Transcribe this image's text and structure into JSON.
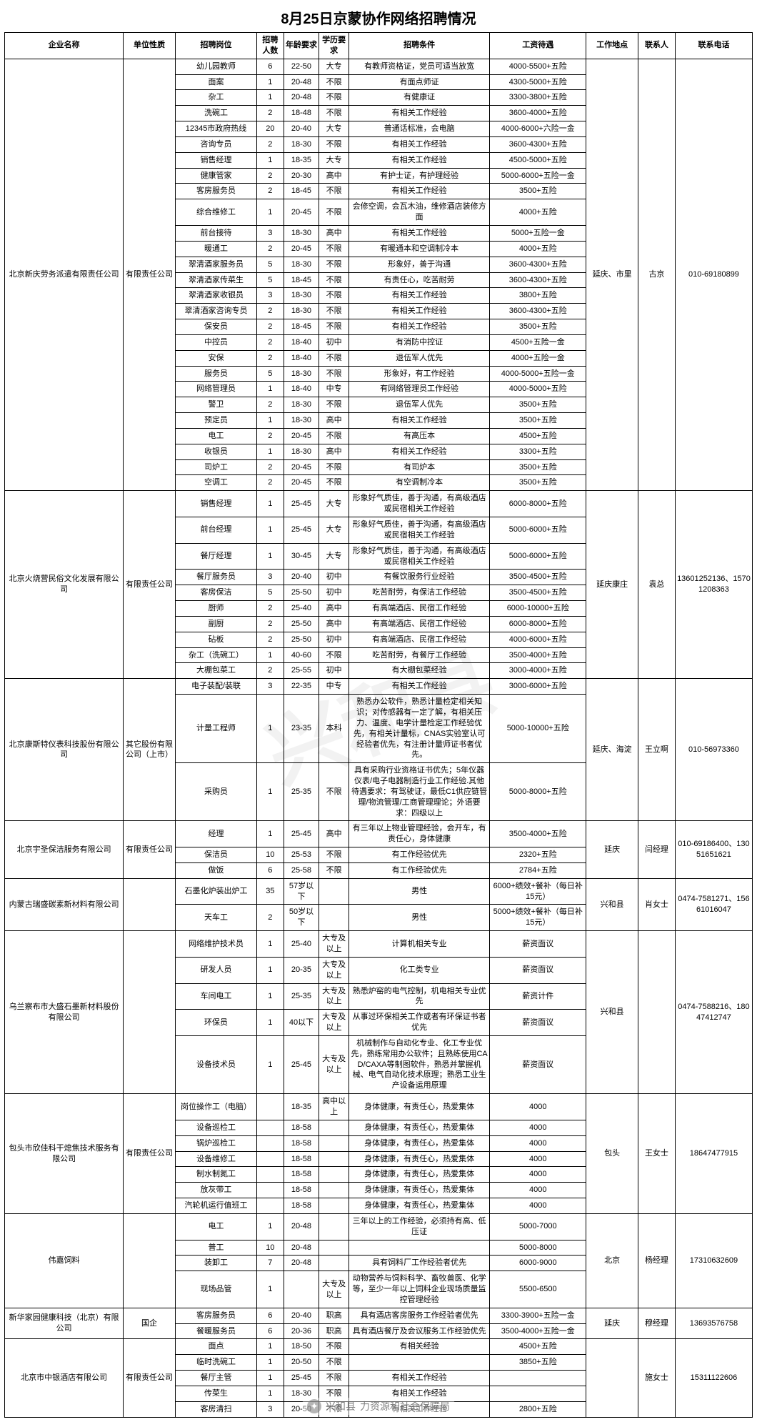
{
  "title": "8月25日京蒙协作网络招聘情况",
  "headers": {
    "company": "企业名称",
    "type": "单位性质",
    "position": "招聘岗位",
    "count": "招聘人数",
    "age": "年龄要求",
    "edu": "学历要求",
    "cond": "招聘条件",
    "salary": "工资待遇",
    "loc": "工作地点",
    "contact": "联系人",
    "phone": "联系电话"
  },
  "watermark_text": "兴和县",
  "footer": {
    "handle_prefix": "兴和县",
    "handle_suffix": "力资源和社会保障局"
  },
  "companies": [
    {
      "name": "北京新庆劳务派遣有限责任公司",
      "type": "有限责任公司",
      "loc": "延庆、市里",
      "contact": "古京",
      "phone": "010-69180899",
      "rows": [
        {
          "position": "幼儿园教师",
          "count": "6",
          "age": "22-50",
          "edu": "大专",
          "cond": "有教师资格证，党员可适当放宽",
          "salary": "4000-5500+五险"
        },
        {
          "position": "面案",
          "count": "1",
          "age": "20-48",
          "edu": "不限",
          "cond": "有面点师证",
          "salary": "4300-5000+五险"
        },
        {
          "position": "杂工",
          "count": "1",
          "age": "20-48",
          "edu": "不限",
          "cond": "有健康证",
          "salary": "3300-3800+五险"
        },
        {
          "position": "洗碗工",
          "count": "2",
          "age": "18-48",
          "edu": "不限",
          "cond": "有相关工作经验",
          "salary": "3600-4000+五险"
        },
        {
          "position": "12345市政府热线",
          "count": "20",
          "age": "20-40",
          "edu": "大专",
          "cond": "普通话标准，会电脑",
          "salary": "4000-6000+六险一金"
        },
        {
          "position": "咨询专员",
          "count": "2",
          "age": "18-30",
          "edu": "不限",
          "cond": "有相关工作经验",
          "salary": "3600-4300+五险"
        },
        {
          "position": "销售经理",
          "count": "1",
          "age": "18-35",
          "edu": "大专",
          "cond": "有相关工作经验",
          "salary": "4500-5000+五险"
        },
        {
          "position": "健康管家",
          "count": "2",
          "age": "20-30",
          "edu": "高中",
          "cond": "有护士证，有护理经验",
          "salary": "5000-6000+五险一金"
        },
        {
          "position": "客房服务员",
          "count": "2",
          "age": "18-45",
          "edu": "不限",
          "cond": "有相关工作经验",
          "salary": "3500+五险"
        },
        {
          "position": "综合维修工",
          "count": "1",
          "age": "20-45",
          "edu": "不限",
          "cond": "会修空调，会瓦木油，维修酒店装修方面",
          "salary": "4000+五险"
        },
        {
          "position": "前台接待",
          "count": "3",
          "age": "18-30",
          "edu": "高中",
          "cond": "有相关工作经验",
          "salary": "5000+五险一金"
        },
        {
          "position": "暖通工",
          "count": "2",
          "age": "20-45",
          "edu": "不限",
          "cond": "有暖通本和空调制冷本",
          "salary": "4000+五险"
        },
        {
          "position": "翠清酒家服务员",
          "count": "5",
          "age": "18-30",
          "edu": "不限",
          "cond": "形象好，善于沟通",
          "salary": "3600-4300+五险"
        },
        {
          "position": "翠清酒家传菜生",
          "count": "5",
          "age": "18-45",
          "edu": "不限",
          "cond": "有责任心，吃苦耐劳",
          "salary": "3600-4300+五险"
        },
        {
          "position": "翠清酒家收银员",
          "count": "3",
          "age": "18-30",
          "edu": "不限",
          "cond": "有相关工作经验",
          "salary": "3800+五险"
        },
        {
          "position": "翠清酒家咨询专员",
          "count": "2",
          "age": "18-30",
          "edu": "不限",
          "cond": "有相关工作经验",
          "salary": "3600-4300+五险"
        },
        {
          "position": "保安员",
          "count": "2",
          "age": "18-45",
          "edu": "不限",
          "cond": "有相关工作经验",
          "salary": "3500+五险"
        },
        {
          "position": "中控员",
          "count": "2",
          "age": "18-40",
          "edu": "初中",
          "cond": "有消防中控证",
          "salary": "4500+五险一金"
        },
        {
          "position": "安保",
          "count": "2",
          "age": "18-40",
          "edu": "不限",
          "cond": "退伍军人优先",
          "salary": "4000+五险一金"
        },
        {
          "position": "服务员",
          "count": "5",
          "age": "18-30",
          "edu": "不限",
          "cond": "形象好，有工作经验",
          "salary": "4000-5000+五险一金"
        },
        {
          "position": "网络管理员",
          "count": "1",
          "age": "18-40",
          "edu": "中专",
          "cond": "有网络管理员工作经验",
          "salary": "4000-5000+五险"
        },
        {
          "position": "警卫",
          "count": "2",
          "age": "18-30",
          "edu": "不限",
          "cond": "退伍军人优先",
          "salary": "3500+五险"
        },
        {
          "position": "预定员",
          "count": "1",
          "age": "18-30",
          "edu": "高中",
          "cond": "有相关工作经验",
          "salary": "3500+五险"
        },
        {
          "position": "电工",
          "count": "2",
          "age": "20-45",
          "edu": "不限",
          "cond": "有高压本",
          "salary": "4500+五险"
        },
        {
          "position": "收银员",
          "count": "1",
          "age": "18-30",
          "edu": "高中",
          "cond": "有相关工作经验",
          "salary": "3300+五险"
        },
        {
          "position": "司炉工",
          "count": "2",
          "age": "20-45",
          "edu": "不限",
          "cond": "有司炉本",
          "salary": "3500+五险"
        },
        {
          "position": "空调工",
          "count": "2",
          "age": "20-45",
          "edu": "不限",
          "cond": "有空调制冷本",
          "salary": "3500+五险"
        }
      ]
    },
    {
      "name": "北京火烧营民俗文化发展有限公司",
      "type": "有限责任公司",
      "loc": "延庆康庄",
      "contact": "袁总",
      "phone": "13601252136、15701208363",
      "rows": [
        {
          "position": "销售经理",
          "count": "1",
          "age": "25-45",
          "edu": "大专",
          "cond": "形象好气质佳，善于沟通，有高级酒店或民宿相关工作经验",
          "salary": "6000-8000+五险"
        },
        {
          "position": "前台经理",
          "count": "1",
          "age": "25-45",
          "edu": "大专",
          "cond": "形象好气质佳，善于沟通，有高级酒店或民宿相关工作经验",
          "salary": "5000-6000+五险"
        },
        {
          "position": "餐厅经理",
          "count": "1",
          "age": "30-45",
          "edu": "大专",
          "cond": "形象好气质佳，善于沟通，有高级酒店或民宿相关工作经验",
          "salary": "5000-6000+五险"
        },
        {
          "position": "餐厅服务员",
          "count": "3",
          "age": "20-40",
          "edu": "初中",
          "cond": "有餐饮服务行业经验",
          "salary": "3500-4500+五险"
        },
        {
          "position": "客房保洁",
          "count": "5",
          "age": "25-50",
          "edu": "初中",
          "cond": "吃苦耐劳，有保洁工作经验",
          "salary": "3500-4500+五险"
        },
        {
          "position": "厨师",
          "count": "2",
          "age": "25-40",
          "edu": "高中",
          "cond": "有高端酒店、民宿工作经验",
          "salary": "6000-10000+五险"
        },
        {
          "position": "副厨",
          "count": "2",
          "age": "25-50",
          "edu": "高中",
          "cond": "有高端酒店、民宿工作经验",
          "salary": "6000-8000+五险"
        },
        {
          "position": "砧板",
          "count": "2",
          "age": "25-50",
          "edu": "初中",
          "cond": "有高端酒店、民宿工作经验",
          "salary": "4000-6000+五险"
        },
        {
          "position": "杂工（洗碗工）",
          "count": "1",
          "age": "40-60",
          "edu": "不限",
          "cond": "吃苦耐劳，有餐厅工作经验",
          "salary": "3500-4000+五险"
        },
        {
          "position": "大棚包菜工",
          "count": "2",
          "age": "25-55",
          "edu": "初中",
          "cond": "有大棚包菜经验",
          "salary": "3000-4000+五险"
        }
      ]
    },
    {
      "name": "北京康斯特仪表科技股份有限公司",
      "type": "其它股份有限公司（上市）",
      "loc": "延庆、海淀",
      "contact": "王立啊",
      "phone": "010-56973360",
      "rows": [
        {
          "position": "电子装配/装联",
          "count": "3",
          "age": "22-35",
          "edu": "中专",
          "cond": "有相关工作经验",
          "salary": "3000-6000+五险"
        },
        {
          "position": "计量工程师",
          "count": "1",
          "age": "23-35",
          "edu": "本科",
          "cond": "熟悉办公软件，熟悉计量检定相关知识；对传感器有一定了解，有相关压力、温度、电学计量检定工作经验优先，有相关计量标，CNAS实验室认可经验者优先，有注册计量师证书者优先。",
          "salary": "5000-10000+五险"
        },
        {
          "position": "采购员",
          "count": "1",
          "age": "25-35",
          "edu": "不限",
          "cond": "具有采购行业资格证书优先；5年仪器仪表/电子电器制造行业工作经验.其他待遇要求：有驾驶证，最低C1供应链管理/物流管理/工商管理理论；外语要求：四级以上",
          "salary": "5000-8000+五险"
        }
      ]
    },
    {
      "name": "北京宇圣保洁服务有限公司",
      "type": "有限责任公司",
      "loc": "延庆",
      "contact": "闫经理",
      "phone": "010-69186400、13051651621",
      "rows": [
        {
          "position": "经理",
          "count": "1",
          "age": "25-45",
          "edu": "高中",
          "cond": "有三年以上物业管理经验，会开车，有责任心，身体健康",
          "salary": "3500-4000+五险"
        },
        {
          "position": "保洁员",
          "count": "10",
          "age": "25-53",
          "edu": "不限",
          "cond": "有工作经验优先",
          "salary": "2320+五险"
        },
        {
          "position": "做饭",
          "count": "6",
          "age": "25-58",
          "edu": "不限",
          "cond": "有工作经验优先",
          "salary": "2784+五险"
        }
      ]
    },
    {
      "name": "内蒙古瑞盛碳素新材料有限公司",
      "type": "",
      "loc": "兴和县",
      "contact": "肖女士",
      "phone": "0474-7581271、15661016047",
      "rows": [
        {
          "position": "石墨化炉装出炉工",
          "count": "35",
          "age": "57岁以下",
          "edu": "",
          "cond": "男性",
          "salary": "6000+绩效+餐补（每日补15元）"
        },
        {
          "position": "天车工",
          "count": "2",
          "age": "50岁以下",
          "edu": "",
          "cond": "男性",
          "salary": "5000+绩效+餐补（每日补15元）"
        }
      ]
    },
    {
      "name": "乌兰察布市大盛石墨新材料股份有限公司",
      "type": "",
      "loc": "兴和县",
      "contact": "",
      "phone": "0474-7588216、18047412747",
      "rows": [
        {
          "position": "网络维护技术员",
          "count": "1",
          "age": "25-40",
          "edu": "大专及以上",
          "cond": "计算机相关专业",
          "salary": "薪资面议"
        },
        {
          "position": "研发人员",
          "count": "1",
          "age": "20-35",
          "edu": "大专及以上",
          "cond": "化工类专业",
          "salary": "薪资面议"
        },
        {
          "position": "车间电工",
          "count": "1",
          "age": "25-35",
          "edu": "大专及以上",
          "cond": "熟悉炉窑的电气控制，机电相关专业优先",
          "salary": "薪资计件"
        },
        {
          "position": "环保员",
          "count": "1",
          "age": "40以下",
          "edu": "大专及以上",
          "cond": "从事过环保相关工作或者有环保证书者优先",
          "salary": "薪资面议"
        },
        {
          "position": "设备技术员",
          "count": "1",
          "age": "25-45",
          "edu": "大专及以上",
          "cond": "机械制作与自动化专业、化工专业优先，熟练常用办公软件；且熟练使用CAD/CAXA等制图软件，熟悉并掌握机械、电气自动化技术原理；熟悉工业生产设备运用原理",
          "salary": "薪资面议"
        }
      ]
    },
    {
      "name": "包头市欣佳科干熄焦技术服务有限公司",
      "type": "有限责任公司",
      "loc": "包头",
      "contact": "王女士",
      "phone": "18647477915",
      "rows": [
        {
          "position": "岗位操作工（电脑）",
          "count": "",
          "age": "18-35",
          "edu": "高中以上",
          "cond": "身体健康，有责任心，热爱集体",
          "salary": "4000"
        },
        {
          "position": "设备巡检工",
          "count": "",
          "age": "18-58",
          "edu": "",
          "cond": "身体健康，有责任心，热爱集体",
          "salary": "4000"
        },
        {
          "position": "锅炉巡检工",
          "count": "",
          "age": "18-58",
          "edu": "",
          "cond": "身体健康，有责任心，热爱集体",
          "salary": "4000"
        },
        {
          "position": "设备维修工",
          "count": "",
          "age": "18-58",
          "edu": "",
          "cond": "身体健康，有责任心，热爱集体",
          "salary": "4000"
        },
        {
          "position": "制水制氮工",
          "count": "",
          "age": "18-58",
          "edu": "",
          "cond": "身体健康，有责任心，热爱集体",
          "salary": "4000"
        },
        {
          "position": "放灰带工",
          "count": "",
          "age": "18-58",
          "edu": "",
          "cond": "身体健康，有责任心，热爱集体",
          "salary": "4000"
        },
        {
          "position": "汽轮机运行值班工",
          "count": "",
          "age": "18-58",
          "edu": "",
          "cond": "身体健康，有责任心，热爱集体",
          "salary": "4000"
        }
      ]
    },
    {
      "name": "伟嘉饲料",
      "type": "",
      "loc": "北京",
      "contact": "杨经理",
      "phone": "17310632609",
      "rows": [
        {
          "position": "电工",
          "count": "1",
          "age": "20-48",
          "edu": "",
          "cond": "三年以上的工作经验，必须持有高、低压证",
          "salary": "5000-7000"
        },
        {
          "position": "普工",
          "count": "10",
          "age": "20-48",
          "edu": "",
          "cond": "",
          "salary": "5000-8000"
        },
        {
          "position": "装卸工",
          "count": "7",
          "age": "20-48",
          "edu": "",
          "cond": "具有饲料厂工作经验者优先",
          "salary": "6000-9000"
        },
        {
          "position": "现场品管",
          "count": "1",
          "age": "",
          "edu": "大专及以上",
          "cond": "动物营养与饲料科学、畜牧兽医、化学等，至少一年以上饲料企业现场质量监控管理经验",
          "salary": "5500-6500"
        }
      ]
    },
    {
      "name": "新华家园健康科技（北京）有限公司",
      "type": "国企",
      "loc": "延庆",
      "contact": "穆经理",
      "phone": "13693576758",
      "rows": [
        {
          "position": "客房服务员",
          "count": "6",
          "age": "20-40",
          "edu": "职高",
          "cond": "具有酒店客房服务工作经验者优先",
          "salary": "3300-3900+五险一金"
        },
        {
          "position": "餐暖服务员",
          "count": "6",
          "age": "20-36",
          "edu": "职高",
          "cond": "具有酒店餐厅及会议服务工作经验优先",
          "salary": "3500-4000+五险一金"
        }
      ]
    },
    {
      "name": "北京市中银酒店有限公司",
      "type": "有限责任公司",
      "loc": "",
      "contact": "施女士",
      "phone": "15311122606",
      "rows": [
        {
          "position": "面点",
          "count": "1",
          "age": "18-50",
          "edu": "不限",
          "cond": "有相关经验",
          "salary": "4500+五险"
        },
        {
          "position": "临时洗碗工",
          "count": "1",
          "age": "20-50",
          "edu": "不限",
          "cond": "",
          "salary": "3850+五险"
        },
        {
          "position": "餐厅主管",
          "count": "1",
          "age": "25-45",
          "edu": "不限",
          "cond": "有相关工作经验",
          "salary": ""
        },
        {
          "position": "传菜生",
          "count": "1",
          "age": "18-30",
          "edu": "不限",
          "cond": "有相关工作经验",
          "salary": ""
        },
        {
          "position": "客房清扫",
          "count": "3",
          "age": "20-50",
          "edu": "不限",
          "cond": "有相关工作经验",
          "salary": "2800+五险"
        }
      ]
    }
  ]
}
